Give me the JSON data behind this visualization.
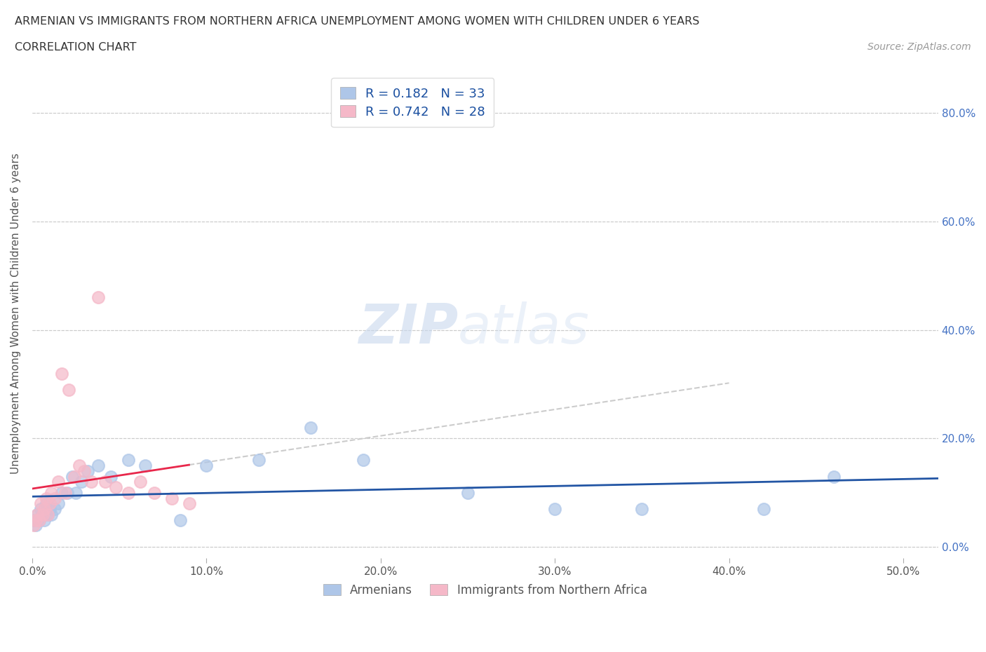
{
  "title_line1": "ARMENIAN VS IMMIGRANTS FROM NORTHERN AFRICA UNEMPLOYMENT AMONG WOMEN WITH CHILDREN UNDER 6 YEARS",
  "title_line2": "CORRELATION CHART",
  "source": "Source: ZipAtlas.com",
  "ylabel": "Unemployment Among Women with Children Under 6 years",
  "watermark_zip": "ZIP",
  "watermark_atlas": "atlas",
  "armenian_scatter": {
    "x": [
      0.001,
      0.002,
      0.003,
      0.004,
      0.005,
      0.006,
      0.007,
      0.008,
      0.009,
      0.01,
      0.011,
      0.013,
      0.015,
      0.017,
      0.02,
      0.023,
      0.025,
      0.028,
      0.032,
      0.038,
      0.045,
      0.055,
      0.065,
      0.085,
      0.1,
      0.13,
      0.16,
      0.19,
      0.25,
      0.3,
      0.35,
      0.42,
      0.46
    ],
    "y": [
      0.05,
      0.04,
      0.06,
      0.05,
      0.07,
      0.06,
      0.05,
      0.08,
      0.06,
      0.07,
      0.06,
      0.07,
      0.08,
      0.1,
      0.1,
      0.13,
      0.1,
      0.12,
      0.14,
      0.15,
      0.13,
      0.16,
      0.15,
      0.05,
      0.15,
      0.16,
      0.22,
      0.16,
      0.1,
      0.07,
      0.07,
      0.07,
      0.13
    ],
    "R": 0.182,
    "N": 33,
    "color": "#aec6e8",
    "line_color": "#2255a4"
  },
  "northern_africa_scatter": {
    "x": [
      0.001,
      0.002,
      0.003,
      0.004,
      0.005,
      0.006,
      0.007,
      0.008,
      0.009,
      0.01,
      0.011,
      0.013,
      0.015,
      0.017,
      0.019,
      0.021,
      0.024,
      0.027,
      0.03,
      0.034,
      0.038,
      0.042,
      0.048,
      0.055,
      0.062,
      0.07,
      0.08,
      0.09
    ],
    "y": [
      0.04,
      0.05,
      0.06,
      0.05,
      0.08,
      0.06,
      0.07,
      0.09,
      0.06,
      0.08,
      0.1,
      0.09,
      0.12,
      0.32,
      0.1,
      0.29,
      0.13,
      0.15,
      0.14,
      0.12,
      0.46,
      0.12,
      0.11,
      0.1,
      0.12,
      0.1,
      0.09,
      0.08
    ],
    "R": 0.742,
    "N": 28,
    "color": "#f5b8c8",
    "line_color": "#e8274b"
  },
  "xlim": [
    0.0,
    0.52
  ],
  "ylim": [
    -0.02,
    0.88
  ],
  "xticks": [
    0.0,
    0.1,
    0.2,
    0.3,
    0.4,
    0.5
  ],
  "xtick_labels": [
    "0.0%",
    "10.0%",
    "20.0%",
    "30.0%",
    "40.0%",
    "50.0%"
  ],
  "ytick_vals": [
    0.0,
    0.2,
    0.4,
    0.6,
    0.8
  ],
  "ytick_labels_right": [
    "0.0%",
    "20.0%",
    "40.0%",
    "60.0%",
    "80.0%"
  ],
  "grid_color": "#cccccc",
  "bg_color": "#ffffff",
  "legend_armenian": "Armenians",
  "legend_northern_africa": "Immigrants from Northern Africa"
}
